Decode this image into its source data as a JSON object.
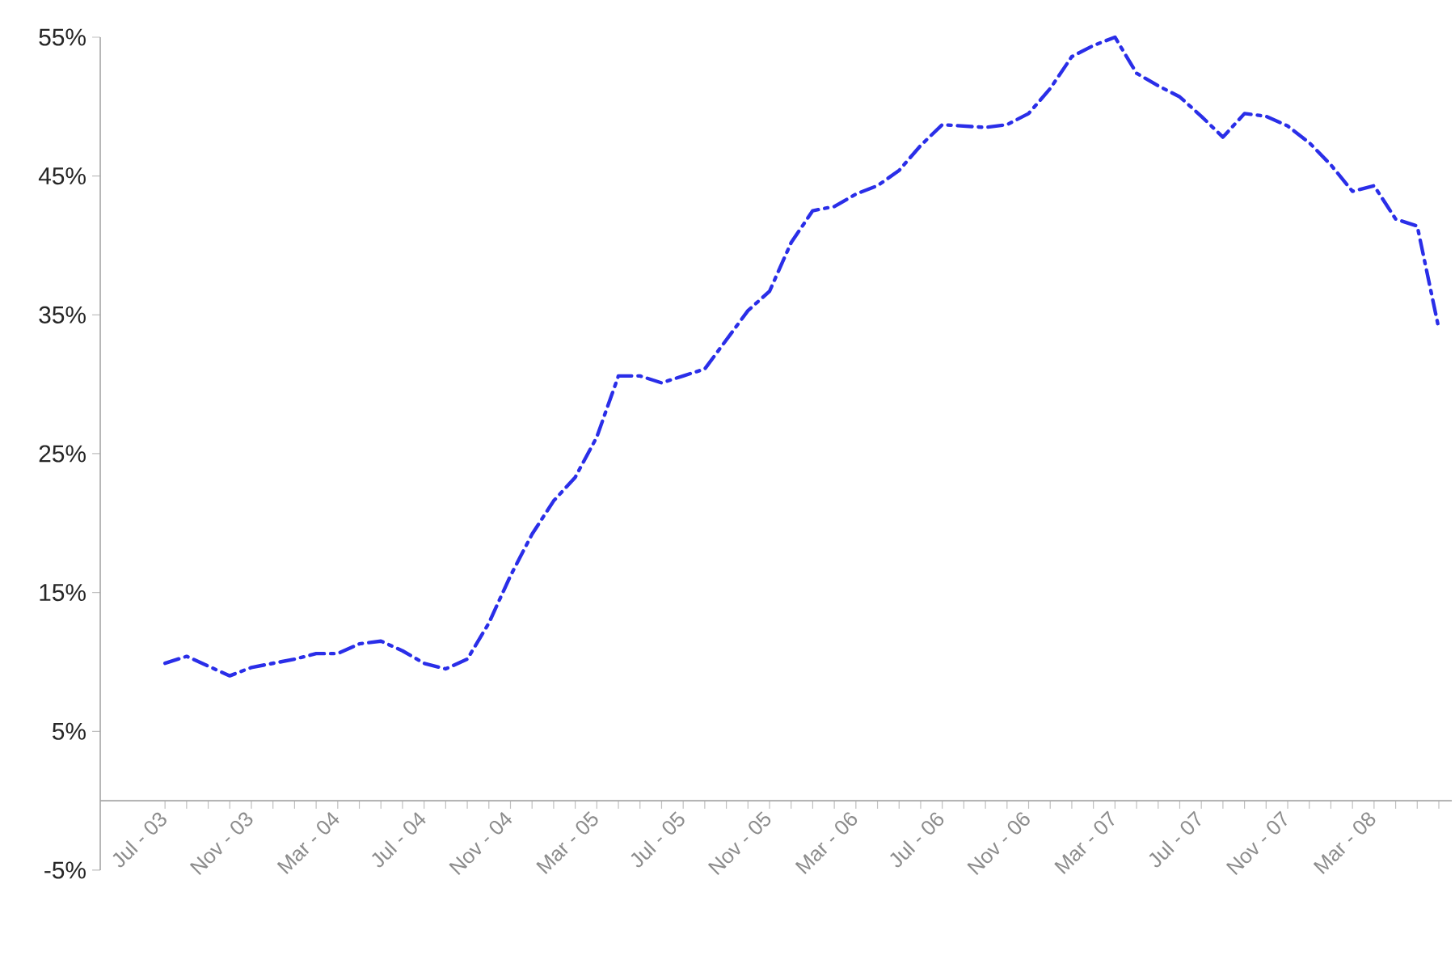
{
  "chart_data": {
    "type": "line",
    "categories": [
      "Jul - 03",
      null,
      null,
      null,
      "Nov - 03",
      null,
      null,
      null,
      "Mar - 04",
      null,
      null,
      null,
      "Jul - 04",
      null,
      null,
      null,
      "Nov - 04",
      null,
      null,
      null,
      "Mar - 05",
      null,
      null,
      null,
      "Jul - 05",
      null,
      null,
      null,
      "Nov - 05",
      null,
      null,
      null,
      "Mar - 06",
      null,
      null,
      null,
      "Jul - 06",
      null,
      null,
      null,
      "Nov - 06",
      null,
      null,
      null,
      "Mar - 07",
      null,
      null,
      null,
      "Jul - 07",
      null,
      null,
      null,
      "Nov - 07",
      null,
      null,
      null,
      "Mar - 08",
      null,
      null,
      null
    ],
    "series": [
      {
        "color": "#2a2ee8",
        "values": [
          9.9,
          10.4,
          9.7,
          9.0,
          9.6,
          9.9,
          10.2,
          10.6,
          10.6,
          11.3,
          11.5,
          10.8,
          9.9,
          9.5,
          10.2,
          12.8,
          16.2,
          19.2,
          21.6,
          23.3,
          26.2,
          30.6,
          30.6,
          30.1,
          30.6,
          31.1,
          33.2,
          35.3,
          36.7,
          40.2,
          42.5,
          42.8,
          43.7,
          44.3,
          45.4,
          47.2,
          48.7,
          48.6,
          48.5,
          48.7,
          49.5,
          51.3,
          53.6,
          54.4,
          55.0,
          52.4,
          51.5,
          50.7,
          49.3,
          47.8,
          49.5,
          49.3,
          48.6,
          47.4,
          45.8,
          43.9,
          44.3,
          41.9,
          41.4,
          34.0
        ]
      }
    ],
    "ylim": [
      -5,
      55
    ],
    "yticks": [
      {
        "value": -5,
        "label": "-5%"
      },
      {
        "value": 5,
        "label": "5%"
      },
      {
        "value": 15,
        "label": "15%"
      },
      {
        "value": 25,
        "label": "25%"
      },
      {
        "value": 35,
        "label": "35%"
      },
      {
        "value": 45,
        "label": "45%"
      },
      {
        "value": 55,
        "label": "55%"
      }
    ],
    "line_style": "dashed",
    "marker": "none",
    "grid": false,
    "legend": false
  }
}
